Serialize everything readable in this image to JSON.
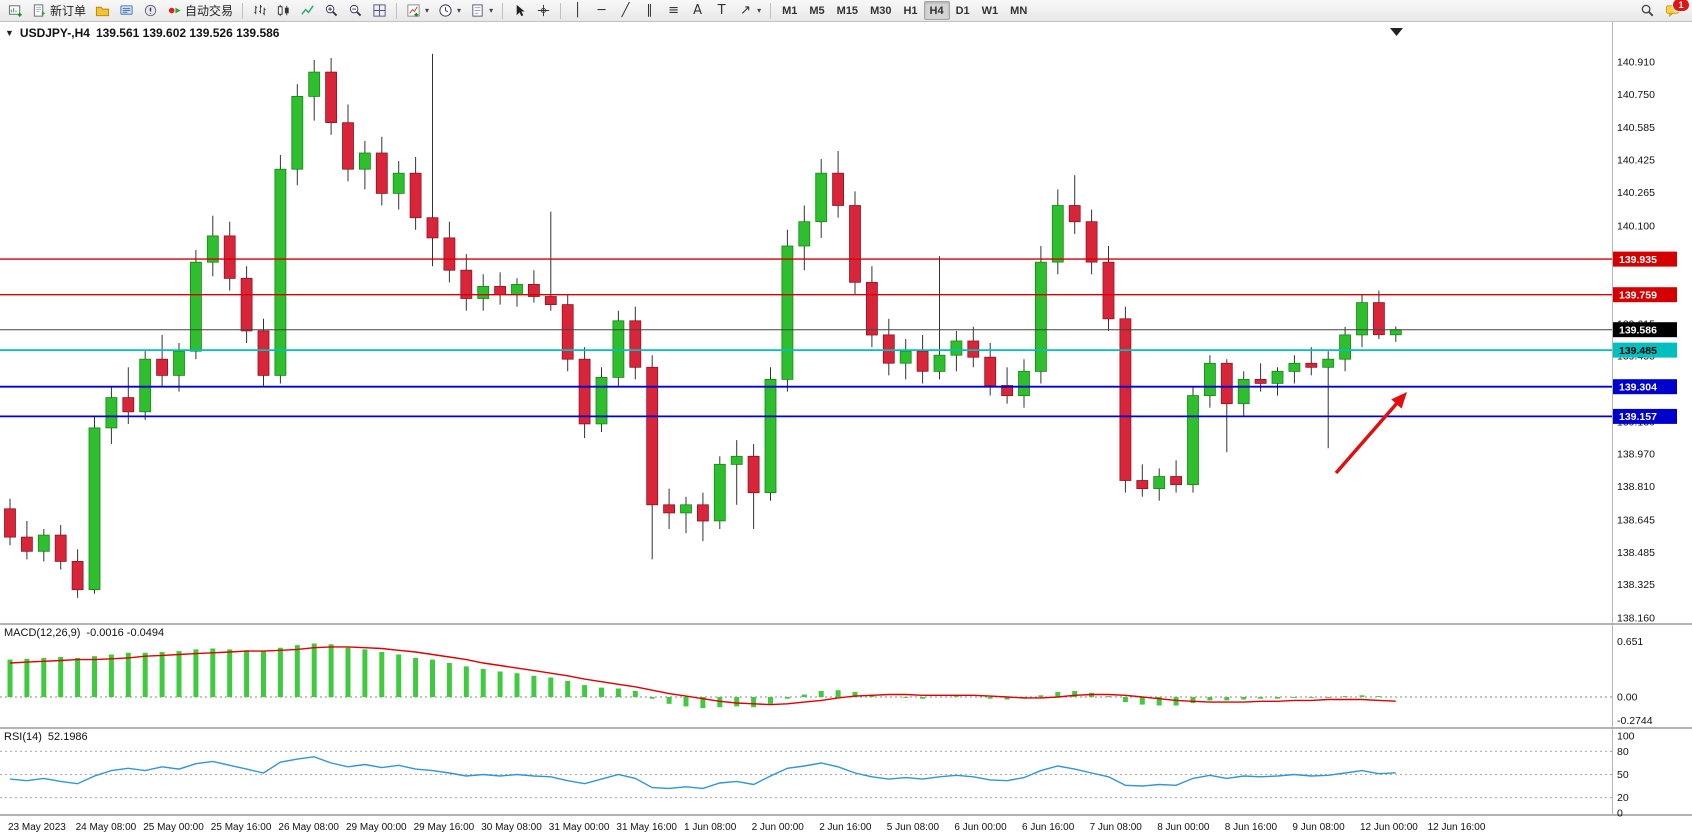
{
  "toolbar": {
    "new_order_label": "新订单",
    "autotrading_label": "自动交易",
    "timeframes": [
      "M1",
      "M5",
      "M15",
      "M30",
      "H1",
      "H4",
      "D1",
      "W1",
      "MN"
    ],
    "active_timeframe": "H4",
    "notification_badge": "1"
  },
  "icons": {
    "caret": "▾",
    "collapse": "▼",
    "vertical_line": "│",
    "horizontal_line": "─",
    "trendline": "╱",
    "channel": "∥",
    "fibonacci": "≡",
    "text": "A",
    "label": "T",
    "arrows": "↗"
  },
  "chart": {
    "symbol_period": "USDJPY-,H4",
    "ohlc_text": "139.561 139.602 139.526 139.586"
  },
  "chart_data": {
    "type": "candlestick",
    "symbol": "USDJPY-",
    "timeframe": "H4",
    "title": "USDJPY-,H4 139.561 139.602 139.526 139.586",
    "ylim": [
      138.16,
      140.91
    ],
    "colors": {
      "up": "#2ebe2e",
      "up_stroke": "#128a12",
      "down": "#d9253a",
      "down_stroke": "#8f1322",
      "wick": "#333333",
      "macd_bar": "#3fca3f",
      "macd_signal": "#e00000",
      "rsi_line": "#2f96d8",
      "current_line": "#444444"
    },
    "price_axis_labels": [
      "140.910",
      "140.750",
      "140.585",
      "140.425",
      "140.265",
      "140.100",
      "139.940",
      "139.775",
      "139.615",
      "139.455",
      "139.290",
      "139.130",
      "138.970",
      "138.810",
      "138.645",
      "138.485",
      "138.325",
      "138.160"
    ],
    "time_axis_labels": [
      "23 May 2023",
      "24 May 08:00",
      "25 May 00:00",
      "25 May 16:00",
      "26 May 08:00",
      "29 May 00:00",
      "29 May 16:00",
      "30 May 08:00",
      "31 May 00:00",
      "31 May 16:00",
      "1 Jun 08:00",
      "2 Jun 00:00",
      "2 Jun 16:00",
      "5 Jun 08:00",
      "6 Jun 00:00",
      "6 Jun 16:00",
      "7 Jun 08:00",
      "8 Jun 00:00",
      "8 Jun 16:00",
      "9 Jun 08:00",
      "12 Jun 00:00",
      "12 Jun 16:00"
    ],
    "candles": [
      [
        138.7,
        138.75,
        138.52,
        138.56
      ],
      [
        138.56,
        138.64,
        138.45,
        138.49
      ],
      [
        138.49,
        138.6,
        138.44,
        138.57
      ],
      [
        138.57,
        138.62,
        138.4,
        138.44
      ],
      [
        138.44,
        138.5,
        138.26,
        138.3
      ],
      [
        138.3,
        139.16,
        138.28,
        139.1
      ],
      [
        139.1,
        139.3,
        139.02,
        139.25
      ],
      [
        139.25,
        139.4,
        139.12,
        139.18
      ],
      [
        139.18,
        139.48,
        139.14,
        139.44
      ],
      [
        139.44,
        139.56,
        139.3,
        139.36
      ],
      [
        139.36,
        139.52,
        139.28,
        139.48
      ],
      [
        139.48,
        139.98,
        139.44,
        139.92
      ],
      [
        139.92,
        140.15,
        139.85,
        140.05
      ],
      [
        140.05,
        140.12,
        139.78,
        139.84
      ],
      [
        139.84,
        139.9,
        139.52,
        139.58
      ],
      [
        139.58,
        139.64,
        139.3,
        139.36
      ],
      [
        139.36,
        140.45,
        139.32,
        140.38
      ],
      [
        140.38,
        140.8,
        140.3,
        140.74
      ],
      [
        140.74,
        140.92,
        140.62,
        140.86
      ],
      [
        140.86,
        140.93,
        140.55,
        140.61
      ],
      [
        140.61,
        140.7,
        140.32,
        140.38
      ],
      [
        140.38,
        140.52,
        140.28,
        140.46
      ],
      [
        140.46,
        140.54,
        140.2,
        140.26
      ],
      [
        140.26,
        140.42,
        140.18,
        140.36
      ],
      [
        140.36,
        140.44,
        140.08,
        140.14
      ],
      [
        140.14,
        140.95,
        139.9,
        140.04
      ],
      [
        140.04,
        140.12,
        139.82,
        139.88
      ],
      [
        139.88,
        139.96,
        139.68,
        139.74
      ],
      [
        139.74,
        139.86,
        139.68,
        139.8
      ],
      [
        139.8,
        139.87,
        139.71,
        139.76
      ],
      [
        139.76,
        139.84,
        139.7,
        139.81
      ],
      [
        139.81,
        139.88,
        139.72,
        139.75
      ],
      [
        139.75,
        140.17,
        139.68,
        139.71
      ],
      [
        139.71,
        139.76,
        139.38,
        139.44
      ],
      [
        139.44,
        139.5,
        139.05,
        139.12
      ],
      [
        139.12,
        139.4,
        139.08,
        139.35
      ],
      [
        139.35,
        139.68,
        139.3,
        139.63
      ],
      [
        139.63,
        139.7,
        139.34,
        139.4
      ],
      [
        139.4,
        139.46,
        138.45,
        138.72
      ],
      [
        138.72,
        138.8,
        138.6,
        138.68
      ],
      [
        138.68,
        138.76,
        138.58,
        138.72
      ],
      [
        138.72,
        138.78,
        138.54,
        138.64
      ],
      [
        138.64,
        138.96,
        138.6,
        138.92
      ],
      [
        138.92,
        139.04,
        138.72,
        138.96
      ],
      [
        138.96,
        139.02,
        138.6,
        138.78
      ],
      [
        138.78,
        139.4,
        138.74,
        139.34
      ],
      [
        139.34,
        140.08,
        139.28,
        140.0
      ],
      [
        140.0,
        140.2,
        139.88,
        140.12
      ],
      [
        140.12,
        140.43,
        140.04,
        140.36
      ],
      [
        140.36,
        140.47,
        140.14,
        140.2
      ],
      [
        140.2,
        140.27,
        139.76,
        139.82
      ],
      [
        139.82,
        139.9,
        139.5,
        139.56
      ],
      [
        139.56,
        139.64,
        139.36,
        139.42
      ],
      [
        139.42,
        139.54,
        139.34,
        139.48
      ],
      [
        139.48,
        139.56,
        139.32,
        139.38
      ],
      [
        139.38,
        139.95,
        139.34,
        139.46
      ],
      [
        139.46,
        139.58,
        139.38,
        139.53
      ],
      [
        139.53,
        139.6,
        139.4,
        139.45
      ],
      [
        139.45,
        139.52,
        139.26,
        139.31
      ],
      [
        139.31,
        139.4,
        139.22,
        139.26
      ],
      [
        139.26,
        139.44,
        139.2,
        139.38
      ],
      [
        139.38,
        140.0,
        139.32,
        139.92
      ],
      [
        139.92,
        140.28,
        139.86,
        140.2
      ],
      [
        140.2,
        140.35,
        140.06,
        140.12
      ],
      [
        140.12,
        140.18,
        139.86,
        139.92
      ],
      [
        139.92,
        140.0,
        139.58,
        139.64
      ],
      [
        139.64,
        139.7,
        138.78,
        138.84
      ],
      [
        138.84,
        138.92,
        138.76,
        138.8
      ],
      [
        138.8,
        138.9,
        138.74,
        138.86
      ],
      [
        138.86,
        138.94,
        138.78,
        138.82
      ],
      [
        138.82,
        139.3,
        138.78,
        139.26
      ],
      [
        139.26,
        139.46,
        139.2,
        139.42
      ],
      [
        139.42,
        139.44,
        138.98,
        139.22
      ],
      [
        139.22,
        139.38,
        139.16,
        139.34
      ],
      [
        139.34,
        139.42,
        139.28,
        139.32
      ],
      [
        139.32,
        139.4,
        139.26,
        139.38
      ],
      [
        139.38,
        139.46,
        139.32,
        139.42
      ],
      [
        139.42,
        139.5,
        139.36,
        139.4
      ],
      [
        139.4,
        139.48,
        139.0,
        139.44
      ],
      [
        139.44,
        139.6,
        139.38,
        139.56
      ],
      [
        139.56,
        139.76,
        139.5,
        139.72
      ],
      [
        139.72,
        139.78,
        139.54,
        139.561
      ],
      [
        139.561,
        139.602,
        139.526,
        139.586
      ]
    ],
    "horizontal_lines": [
      {
        "price": "139.935",
        "color": "#d40000",
        "width": 1.4,
        "tag_text": "#ffffff"
      },
      {
        "price": "139.759",
        "color": "#d40000",
        "width": 1.4,
        "tag_text": "#ffffff"
      },
      {
        "price": "139.485",
        "color": "#00bfbf",
        "width": 1.8,
        "tag_text": "#000000"
      },
      {
        "price": "139.304",
        "color": "#0000cc",
        "width": 1.8,
        "tag_text": "#ffffff"
      },
      {
        "price": "139.157",
        "color": "#0000cc",
        "width": 1.8,
        "tag_text": "#ffffff"
      }
    ],
    "current_price": {
      "price": "139.586",
      "line_color": "#444444",
      "tag_bg": "#000000",
      "tag_text": "#ffffff"
    },
    "macd": {
      "label": "MACD(12,26,9)",
      "values_text": "-0.0016 -0.0494",
      "scale_labels": [
        "0.651",
        "0.00",
        "-0.2744"
      ],
      "histogram": [
        0.44,
        0.45,
        0.46,
        0.47,
        0.46,
        0.48,
        0.5,
        0.52,
        0.52,
        0.53,
        0.54,
        0.56,
        0.57,
        0.56,
        0.55,
        0.54,
        0.58,
        0.61,
        0.63,
        0.62,
        0.58,
        0.56,
        0.53,
        0.5,
        0.46,
        0.44,
        0.4,
        0.36,
        0.33,
        0.3,
        0.28,
        0.25,
        0.23,
        0.19,
        0.14,
        0.11,
        0.1,
        0.07,
        -0.02,
        -0.08,
        -0.11,
        -0.13,
        -0.12,
        -0.11,
        -0.12,
        -0.08,
        -0.02,
        0.03,
        0.07,
        0.08,
        0.06,
        0.03,
        0.0,
        -0.01,
        -0.02,
        0.0,
        0.01,
        0.0,
        -0.02,
        -0.03,
        -0.02,
        0.02,
        0.06,
        0.07,
        0.05,
        0.01,
        -0.06,
        -0.09,
        -0.1,
        -0.1,
        -0.07,
        -0.04,
        -0.04,
        -0.03,
        -0.02,
        -0.02,
        -0.01,
        -0.01,
        -0.01,
        0.01,
        0.02,
        0.01,
        -0.002
      ],
      "signal": [
        0.4,
        0.41,
        0.42,
        0.43,
        0.44,
        0.44,
        0.45,
        0.46,
        0.48,
        0.49,
        0.5,
        0.51,
        0.52,
        0.53,
        0.54,
        0.54,
        0.55,
        0.56,
        0.58,
        0.59,
        0.59,
        0.58,
        0.57,
        0.55,
        0.53,
        0.5,
        0.47,
        0.44,
        0.4,
        0.37,
        0.34,
        0.31,
        0.28,
        0.25,
        0.21,
        0.18,
        0.15,
        0.12,
        0.08,
        0.04,
        0.01,
        -0.02,
        -0.05,
        -0.07,
        -0.08,
        -0.09,
        -0.08,
        -0.06,
        -0.04,
        -0.01,
        0.01,
        0.02,
        0.03,
        0.03,
        0.02,
        0.02,
        0.02,
        0.02,
        0.01,
        0.0,
        -0.01,
        -0.01,
        0.0,
        0.02,
        0.03,
        0.03,
        0.02,
        0.0,
        -0.02,
        -0.04,
        -0.05,
        -0.06,
        -0.06,
        -0.06,
        -0.05,
        -0.05,
        -0.04,
        -0.04,
        -0.03,
        -0.03,
        -0.03,
        -0.04,
        -0.049
      ]
    },
    "rsi": {
      "label": "RSI(14)",
      "value_text": "52.1986",
      "scale_labels": [
        "100",
        "80",
        "50",
        "20",
        "0"
      ],
      "levels": [
        80,
        50,
        20
      ],
      "values": [
        44,
        42,
        45,
        41,
        38,
        48,
        55,
        58,
        55,
        60,
        57,
        64,
        67,
        62,
        57,
        52,
        66,
        70,
        73,
        65,
        60,
        63,
        59,
        62,
        57,
        55,
        52,
        48,
        50,
        48,
        50,
        48,
        47,
        42,
        38,
        44,
        50,
        45,
        33,
        32,
        34,
        32,
        39,
        41,
        37,
        48,
        58,
        61,
        65,
        60,
        52,
        47,
        44,
        46,
        44,
        47,
        49,
        47,
        43,
        42,
        46,
        55,
        61,
        57,
        52,
        47,
        36,
        35,
        37,
        36,
        45,
        49,
        45,
        48,
        47,
        48,
        50,
        48,
        49,
        52,
        55,
        51,
        52.2
      ]
    },
    "annotation_arrow": {
      "color": "#e01010"
    }
  }
}
